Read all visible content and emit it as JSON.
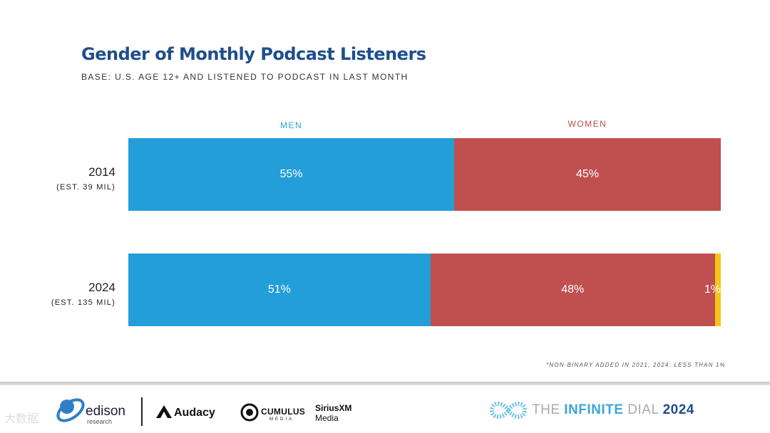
{
  "title": "Gender of Monthly Podcast Listeners",
  "subtitle": "BASE: U.S. AGE 12+ AND LISTENED TO PODCAST IN LAST MONTH",
  "chart_data": {
    "type": "bar",
    "orientation": "horizontal",
    "stacked": true,
    "normalized_percent": true,
    "title": "Gender of Monthly Podcast Listeners",
    "subtitle": "BASE: U.S. AGE 12+ AND LISTENED TO PODCAST IN LAST MONTH",
    "categories": [
      "2014",
      "2024"
    ],
    "category_notes": [
      "(EST. 39 MIL)",
      "(EST. 135 MIL)"
    ],
    "series": [
      {
        "name": "MEN",
        "values": [
          55,
          51
        ],
        "labels": [
          "55%",
          "51%"
        ],
        "color": "#239ed8"
      },
      {
        "name": "WOMEN",
        "values": [
          45,
          48
        ],
        "labels": [
          "45%",
          "48%"
        ],
        "color": "#c04f4f"
      },
      {
        "name": "",
        "values": [
          0,
          1
        ],
        "labels": [
          "",
          "1%"
        ],
        "color": "#f5c518"
      }
    ],
    "column_labels": {
      "men": "MEN",
      "women": "WOMEN"
    },
    "column_label_colors": {
      "men": "#2aa3db",
      "women": "#b5504d"
    },
    "footnote": "*NON-BINARY ADDED IN 2021; 2024: LESS THAN 1%"
  },
  "footer": {
    "edison": "edison",
    "edison_sub": "research",
    "audacy": "Audacy",
    "cumulus": "CUMULUS",
    "cumulus_sub": "MEDIA",
    "sirius": "SiriusXM",
    "sirius_sub": "Media",
    "dial_prefix": "THE ",
    "dial_highlight": "INFINITE",
    "dial_mid": " DIAL",
    "dial_year": "2024"
  },
  "watermark": "大数据"
}
